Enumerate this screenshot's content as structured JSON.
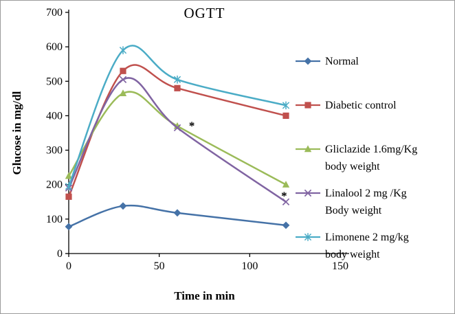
{
  "chart_data": {
    "type": "line",
    "title": "OGTT",
    "xlabel": "Time in min",
    "ylabel": "Glucose in mg/dl",
    "x": [
      0,
      30,
      60,
      120
    ],
    "xlim": [
      0,
      150
    ],
    "ylim": [
      0,
      700
    ],
    "x_ticks": [
      0,
      50,
      100,
      150
    ],
    "y_ticks": [
      0,
      100,
      200,
      300,
      400,
      500,
      600,
      700
    ],
    "grid": false,
    "smooth_lines": true,
    "legend_position": "right",
    "series": [
      {
        "name": "Normal",
        "marker": "diamond",
        "color": "#4572a7",
        "values": [
          78,
          138,
          118,
          82
        ]
      },
      {
        "name": "Diabetic control",
        "marker": "square",
        "color": "#c0504d",
        "values": [
          165,
          530,
          480,
          400
        ]
      },
      {
        "name": "Gliclazide 1.6mg/Kg body weight",
        "marker": "triangle",
        "color": "#9bbb59",
        "values": [
          225,
          465,
          370,
          200
        ]
      },
      {
        "name": "Linalool 2 mg /Kg Body weight",
        "marker": "x",
        "color": "#8064a2",
        "values": [
          190,
          505,
          365,
          150
        ]
      },
      {
        "name": "Limonene 2 mg/kg body weight",
        "marker": "asterisk",
        "color": "#4bacc6",
        "values": [
          195,
          590,
          505,
          430
        ]
      }
    ],
    "annotations": [
      {
        "text": "*",
        "x": 68,
        "y": 378
      },
      {
        "text": "*",
        "x": 119,
        "y": 175
      }
    ]
  }
}
